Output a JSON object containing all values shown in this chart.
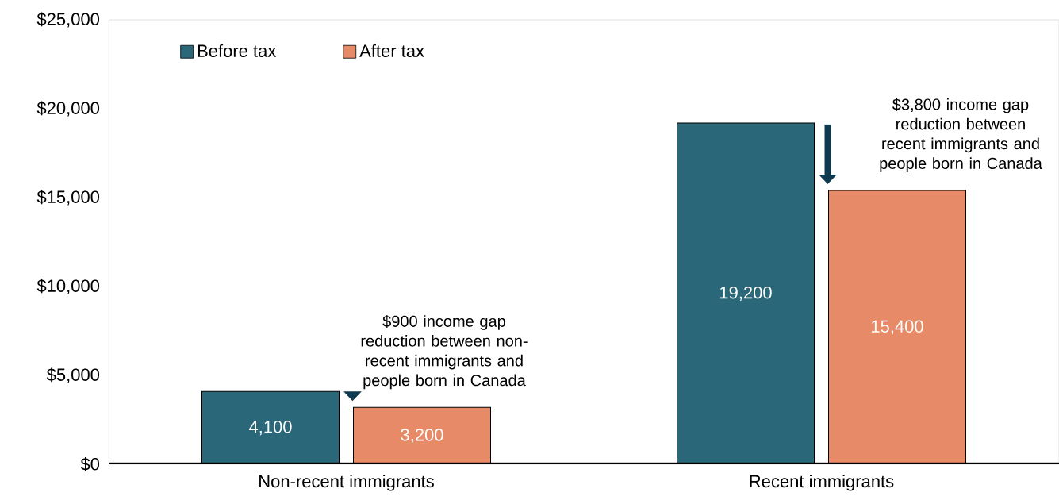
{
  "chart_data": {
    "type": "bar",
    "categories": [
      "Non-recent immigrants",
      "Recent immigrants"
    ],
    "series": [
      {
        "name": "Before tax",
        "color": "#2a6779",
        "values": [
          4100,
          19200
        ],
        "value_labels": [
          "4,100",
          "19,200"
        ]
      },
      {
        "name": "After tax",
        "color": "#e68a67",
        "values": [
          3200,
          15400
        ],
        "value_labels": [
          "3,200",
          "15,400"
        ]
      }
    ],
    "ylim": [
      0,
      25000
    ],
    "yticks": [
      {
        "value": 0,
        "label": "$0"
      },
      {
        "value": 5000,
        "label": "$5,000"
      },
      {
        "value": 10000,
        "label": "$10,000"
      },
      {
        "value": 15000,
        "label": "$15,000"
      },
      {
        "value": 20000,
        "label": "$20,000"
      },
      {
        "value": 25000,
        "label": "$25,000"
      }
    ],
    "legend": "top left",
    "annotations": [
      "$900 income gap reduction between non-recent immigrants and people born in Canada",
      "$3,800 income gap reduction between recent immigrants and people born in Canada"
    ]
  }
}
